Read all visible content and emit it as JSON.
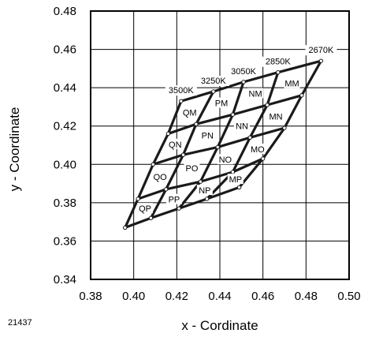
{
  "chart_data": {
    "type": "diagram",
    "xlabel": "x - Cordinate",
    "ylabel": "y - Coordinate",
    "xlim": [
      0.38,
      0.5
    ],
    "ylim": [
      0.34,
      0.48
    ],
    "xticks": [
      "0.38",
      "0.40",
      "0.42",
      "0.44",
      "0.46",
      "0.48",
      "0.50"
    ],
    "yticks": [
      "0.34",
      "0.36",
      "0.38",
      "0.40",
      "0.42",
      "0.44",
      "0.46",
      "0.48"
    ],
    "grid": true,
    "figure_number": "21437",
    "lattice_nodes": [
      [
        [
          0.422,
          0.433
        ],
        [
          0.437,
          0.438
        ],
        [
          0.451,
          0.443
        ],
        [
          0.467,
          0.448
        ],
        [
          0.487,
          0.454
        ]
      ],
      [
        [
          0.416,
          0.416
        ],
        [
          0.429,
          0.421
        ],
        [
          0.446,
          0.426
        ],
        [
          0.462,
          0.431
        ],
        [
          0.478,
          0.436
        ]
      ],
      [
        [
          0.409,
          0.4
        ],
        [
          0.423,
          0.405
        ],
        [
          0.439,
          0.409
        ],
        [
          0.454,
          0.414
        ],
        [
          0.47,
          0.419
        ]
      ],
      [
        [
          0.402,
          0.382
        ],
        [
          0.415,
          0.387
        ],
        [
          0.431,
          0.391
        ],
        [
          0.446,
          0.396
        ],
        [
          0.46,
          0.403
        ]
      ],
      [
        [
          0.396,
          0.367
        ],
        [
          0.408,
          0.372
        ],
        [
          0.421,
          0.377
        ],
        [
          0.434,
          0.382
        ],
        [
          0.449,
          0.388
        ]
      ]
    ],
    "temperature_labels": [
      "3500K",
      "3250K",
      "3050K",
      "2850K",
      "2670K"
    ],
    "cell_labels": [
      [
        "QM",
        "PM",
        "NM",
        "MM"
      ],
      [
        "QN",
        "PN",
        "NN",
        "MN"
      ],
      [
        "QO",
        "PO",
        "NO",
        "MO"
      ],
      [
        "QP",
        "PP",
        "NP",
        "MP"
      ]
    ]
  }
}
